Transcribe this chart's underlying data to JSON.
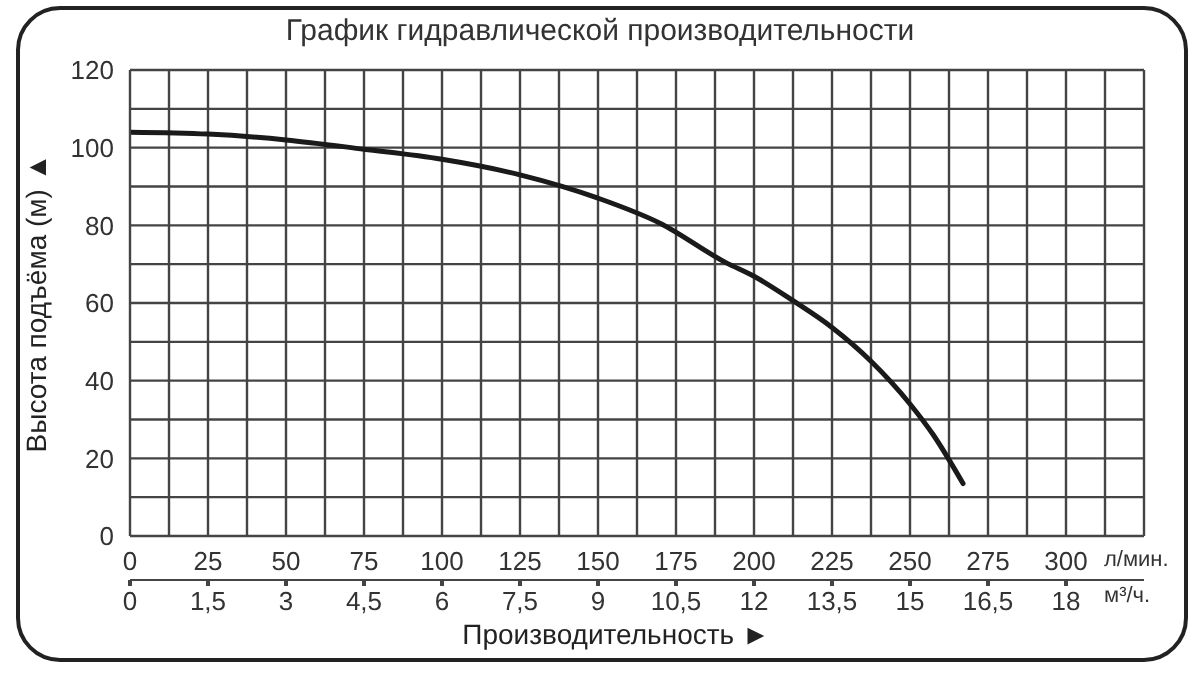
{
  "chart_data": {
    "type": "line",
    "title": "График гидравлической производительности",
    "xlabel": "Производительность ►",
    "ylabel": "Высота подъёма (м) ▲",
    "x": [
      0,
      25,
      50,
      75,
      100,
      125,
      150,
      170,
      191,
      200,
      212.5,
      225,
      237.5,
      250,
      257.5,
      267
    ],
    "series": [
      {
        "color": "#1a1a1a",
        "values": [
          104,
          103.5,
          102,
          99.6,
          97,
          93,
          87,
          80.5,
          70.4,
          66.9,
          60.6,
          53.7,
          45,
          34,
          26,
          13.5
        ]
      }
    ],
    "xlim": [
      0,
      325
    ],
    "xticks": [
      0,
      {
        "value": 12.5,
        "label": null
      },
      25,
      {
        "value": 37.5,
        "label": null
      },
      50,
      {
        "value": 62.5,
        "label": null
      },
      75,
      {
        "value": 87.5,
        "label": null
      },
      100,
      {
        "value": 112.5,
        "label": null
      },
      125,
      {
        "value": 137.5,
        "label": null
      },
      150,
      {
        "value": 162.5,
        "label": null
      },
      175,
      {
        "value": 187.5,
        "label": null
      },
      200,
      {
        "value": 212.5,
        "label": null
      },
      225,
      {
        "value": 237.5,
        "label": null
      },
      250,
      {
        "value": 262.5,
        "label": null
      },
      275,
      {
        "value": 287.5,
        "label": null
      },
      300,
      {
        "value": 312.5,
        "label": null
      }
    ],
    "x2lim": [
      0,
      19.5
    ],
    "x2ticks": [
      0,
      {
        "value": 1.5,
        "label": "1,5"
      },
      3,
      {
        "value": 4.5,
        "label": "4,5"
      },
      6,
      {
        "value": 7.5,
        "label": "7,5"
      },
      9,
      {
        "value": 10.5,
        "label": "10,5"
      },
      12,
      {
        "value": 13.5,
        "label": "13,5"
      },
      15,
      {
        "value": 16.5,
        "label": "16,5"
      },
      18
    ],
    "ylim": [
      0,
      120
    ],
    "yticks": [
      0,
      {
        "value": 10,
        "label": null
      },
      20,
      {
        "value": 30,
        "label": null
      },
      40,
      {
        "value": 50,
        "label": null
      },
      60,
      {
        "value": 70,
        "label": null
      },
      80,
      {
        "value": 90,
        "label": null
      },
      100,
      {
        "value": 110,
        "label": null
      },
      120
    ],
    "annotations": [
      "л/мин.",
      "м³/ч."
    ],
    "grid": true,
    "marker": "none",
    "line_style": "solid"
  }
}
